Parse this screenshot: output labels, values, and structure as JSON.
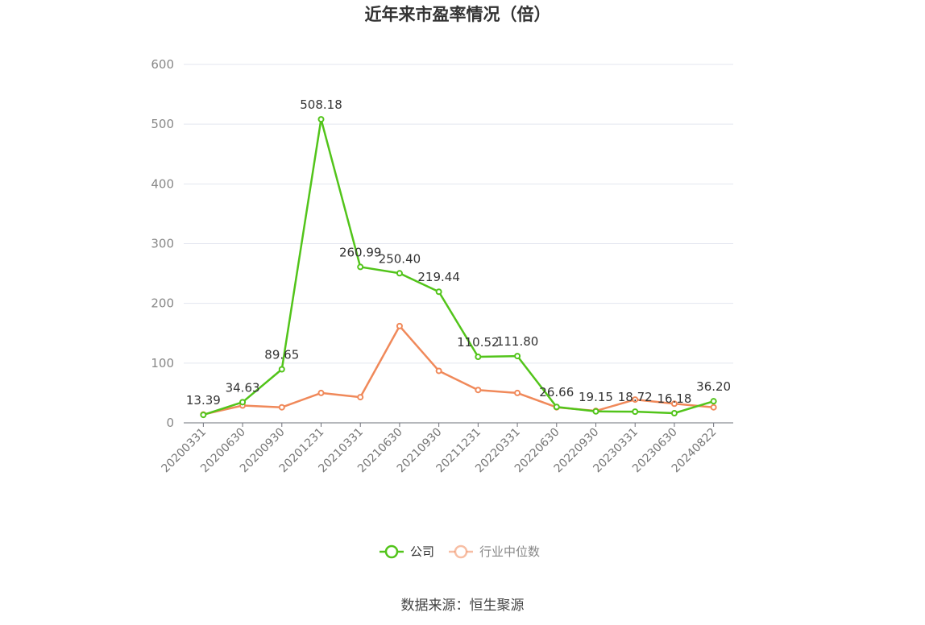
{
  "chart_data": {
    "type": "line",
    "title": "近年来市盈率情况（倍）",
    "x": [
      "20200331",
      "20200630",
      "20200930",
      "20201231",
      "20210331",
      "20210630",
      "20210930",
      "20211231",
      "20220331",
      "20220630",
      "20220930",
      "20230331",
      "20230630",
      "20240822"
    ],
    "series": [
      {
        "name": "公司",
        "color": "#52c41a",
        "values": [
          13.39,
          34.63,
          89.65,
          508.18,
          260.99,
          250.4,
          219.44,
          110.52,
          111.8,
          26.66,
          19.15,
          18.72,
          16.18,
          36.2
        ],
        "labels": [
          "13.39",
          "34.63",
          "89.65",
          "508.18",
          "260.99",
          "250.40",
          "219.44",
          "110.52",
          "111.80",
          "26.66",
          "19.15",
          "18.72",
          "16.18",
          "36.20"
        ]
      },
      {
        "name": "行业中位数",
        "color": "#f0895a",
        "values": [
          14,
          29,
          26,
          50,
          43,
          162,
          87,
          55,
          50,
          26,
          20,
          39,
          32,
          26
        ]
      }
    ],
    "ylim": [
      0,
      600
    ],
    "yticks": [
      "0",
      "100",
      "200",
      "300",
      "400",
      "500",
      "600"
    ],
    "grid": true,
    "legend": "bottom"
  },
  "source": "数据来源：恒生聚源"
}
